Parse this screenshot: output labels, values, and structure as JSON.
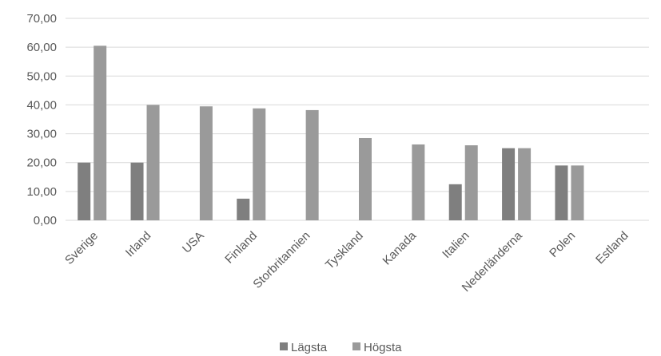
{
  "chart_data": {
    "type": "bar",
    "categories": [
      "Sverige",
      "Irland",
      "USA",
      "Finland",
      "Storbritannien",
      "Tyskland",
      "Kanada",
      "Italien",
      "Nederländerna",
      "Polen",
      "Estland"
    ],
    "series": [
      {
        "name": "Lägsta",
        "color": "#7f7f7f",
        "values": [
          20,
          20,
          null,
          7.5,
          null,
          null,
          null,
          12.5,
          25,
          19,
          null
        ]
      },
      {
        "name": "Högsta",
        "color": "#9a9a9a",
        "values": [
          60.5,
          40,
          39.5,
          38.8,
          38.2,
          28.5,
          26.3,
          26,
          25,
          19,
          null
        ]
      }
    ],
    "y_ticks": [
      "0,00",
      "10,00",
      "20,00",
      "30,00",
      "40,00",
      "50,00",
      "60,00",
      "70,00"
    ],
    "ylim": [
      0,
      70
    ],
    "grid": true,
    "legend_position": "bottom",
    "title": "",
    "xlabel": "",
    "ylabel": ""
  }
}
